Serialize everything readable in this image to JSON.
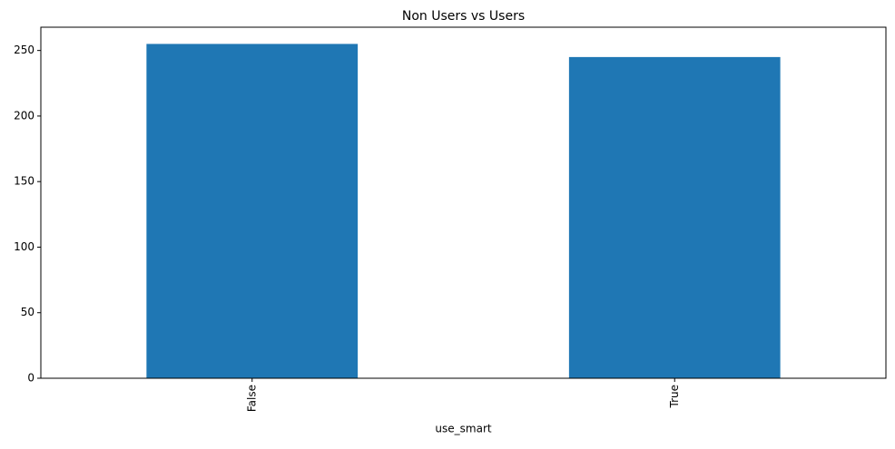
{
  "chart_data": {
    "type": "bar",
    "title": "Non Users vs Users",
    "x_label": "use_smart",
    "categories": [
      "False",
      "True"
    ],
    "values": [
      255,
      245
    ],
    "color": "#1f77b4",
    "ylim": [
      0,
      267.75
    ],
    "yticks": [
      0,
      50,
      100,
      150,
      200,
      250
    ],
    "grid": false
  }
}
